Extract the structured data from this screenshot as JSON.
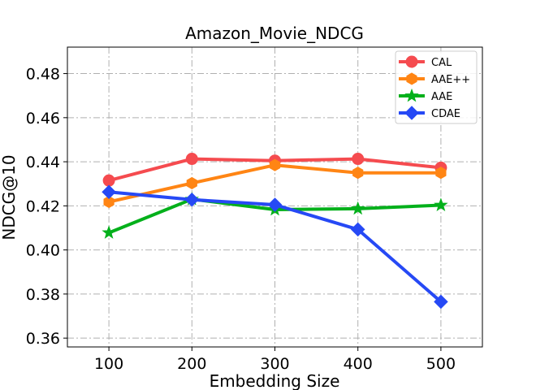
{
  "chart_data": {
    "type": "line",
    "title": "Amazon_Movie_NDCG",
    "xlabel": "Embedding Size",
    "ylabel": "NDCG@10",
    "x": [
      100,
      200,
      300,
      400,
      500
    ],
    "x_tick_labels": [
      "100",
      "200",
      "300",
      "400",
      "500"
    ],
    "xlim": [
      50,
      550
    ],
    "ylim": [
      0.356,
      0.492
    ],
    "y_ticks": [
      0.36,
      0.38,
      0.4,
      0.42,
      0.44,
      0.46,
      0.48
    ],
    "y_tick_labels": [
      "0.36",
      "0.38",
      "0.40",
      "0.42",
      "0.44",
      "0.46",
      "0.48"
    ],
    "grid": true,
    "legend_position": "top-right",
    "series": [
      {
        "name": "CAL",
        "values": [
          0.4315,
          0.4413,
          0.4405,
          0.4413,
          0.4373
        ],
        "color": "#f54b4f",
        "marker": "circle"
      },
      {
        "name": "AAE++",
        "values": [
          0.4218,
          0.4303,
          0.4385,
          0.435,
          0.435
        ],
        "color": "#ff8514",
        "marker": "hexagon"
      },
      {
        "name": "AAE",
        "values": [
          0.4078,
          0.423,
          0.4183,
          0.4187,
          0.4203
        ],
        "color": "#03b01b",
        "marker": "star"
      },
      {
        "name": "CDAE",
        "values": [
          0.4263,
          0.4228,
          0.4205,
          0.4093,
          0.3765
        ],
        "color": "#2649f5",
        "marker": "diamond"
      }
    ]
  }
}
